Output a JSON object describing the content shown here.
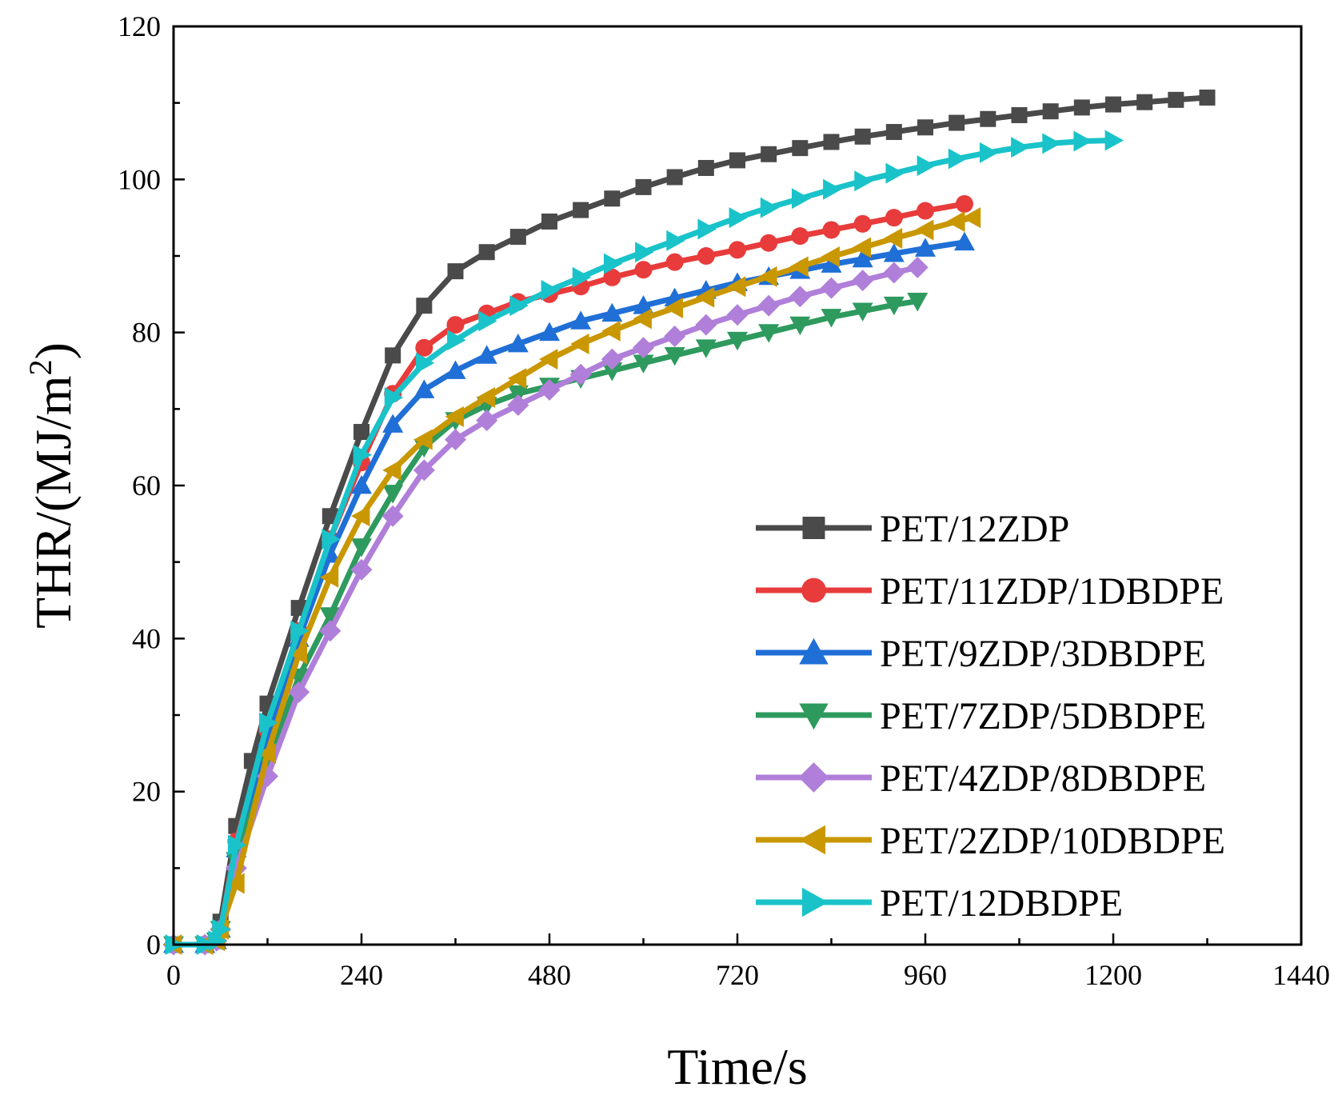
{
  "chart_data": {
    "type": "line",
    "title": "",
    "xlabel": "Time/s",
    "ylabel_main": "THR/(MJ/m",
    "ylabel_sup": "2",
    "ylabel_close": ")",
    "xlim": [
      0,
      1440
    ],
    "ylim": [
      0,
      120
    ],
    "xticks": [
      0,
      240,
      480,
      720,
      960,
      1200,
      1440
    ],
    "yticks": [
      0,
      20,
      40,
      60,
      80,
      100,
      120
    ],
    "legend_position": "bottom-right",
    "grid": false,
    "series": [
      {
        "name": "PET/12ZDP",
        "color": "#4a4a4a",
        "marker": "square",
        "x": [
          0,
          40,
          55,
          60,
          80,
          100,
          120,
          160,
          200,
          240,
          280,
          320,
          360,
          400,
          440,
          480,
          520,
          560,
          600,
          640,
          680,
          720,
          760,
          800,
          840,
          880,
          920,
          960,
          1000,
          1040,
          1080,
          1120,
          1160,
          1200,
          1240,
          1280,
          1320
        ],
        "y": [
          0,
          0,
          0.5,
          3,
          15.5,
          24,
          31.5,
          44,
          56,
          67,
          77,
          83.5,
          88,
          90.5,
          92.5,
          94.5,
          96,
          97.5,
          99,
          100.3,
          101.5,
          102.5,
          103.3,
          104.1,
          104.9,
          105.6,
          106.2,
          106.8,
          107.4,
          107.9,
          108.4,
          108.9,
          109.4,
          109.8,
          110.1,
          110.4,
          110.7
        ]
      },
      {
        "name": "PET/11ZDP/1DBDPE",
        "color": "#e83b3b",
        "marker": "circle",
        "x": [
          0,
          40,
          55,
          60,
          80,
          120,
          160,
          200,
          240,
          280,
          320,
          360,
          400,
          440,
          480,
          520,
          560,
          600,
          640,
          680,
          720,
          760,
          800,
          840,
          880,
          920,
          960,
          1010
        ],
        "y": [
          0,
          0,
          0.5,
          2,
          13.5,
          28,
          41,
          53,
          63,
          72,
          78,
          81,
          82.5,
          84,
          85,
          86,
          87.2,
          88.2,
          89.2,
          90,
          90.8,
          91.7,
          92.6,
          93.4,
          94.2,
          95,
          95.9,
          96.8
        ]
      },
      {
        "name": "PET/9ZDP/3DBDPE",
        "color": "#1f6fd6",
        "marker": "triangle-up",
        "x": [
          0,
          40,
          55,
          60,
          80,
          120,
          160,
          200,
          240,
          280,
          320,
          360,
          400,
          440,
          480,
          520,
          560,
          600,
          640,
          680,
          720,
          760,
          800,
          840,
          880,
          920,
          960,
          1010
        ],
        "y": [
          0,
          0,
          0.5,
          2,
          12.5,
          27,
          40,
          51,
          60,
          68,
          72.5,
          75,
          77,
          78.5,
          80,
          81.5,
          82.5,
          83.5,
          84.5,
          85.5,
          86.5,
          87.3,
          88.1,
          88.9,
          89.6,
          90.3,
          91,
          91.8
        ]
      },
      {
        "name": "PET/7ZDP/5DBDPE",
        "color": "#2e9a5e",
        "marker": "triangle-down",
        "x": [
          0,
          40,
          55,
          60,
          80,
          120,
          160,
          200,
          240,
          280,
          320,
          360,
          400,
          440,
          480,
          520,
          560,
          600,
          640,
          680,
          720,
          760,
          800,
          840,
          880,
          920,
          950
        ],
        "y": [
          0,
          0,
          0.5,
          2,
          11,
          24,
          35,
          43,
          52,
          59,
          65,
          68.5,
          70.5,
          72,
          73,
          74,
          75,
          76,
          77,
          78,
          79,
          80,
          81,
          82,
          82.8,
          83.6,
          84.1
        ]
      },
      {
        "name": "PET/4ZDP/8DBDPE",
        "color": "#b07fd9",
        "marker": "diamond",
        "x": [
          0,
          40,
          55,
          60,
          80,
          120,
          160,
          200,
          240,
          280,
          320,
          360,
          400,
          440,
          480,
          520,
          560,
          600,
          640,
          680,
          720,
          760,
          800,
          840,
          880,
          920,
          950
        ],
        "y": [
          0,
          0,
          0.5,
          2,
          10,
          22,
          33,
          41,
          49,
          56,
          62,
          66,
          68.5,
          70.5,
          72.5,
          74.5,
          76.5,
          78,
          79.5,
          81,
          82.3,
          83.5,
          84.7,
          85.8,
          86.8,
          87.8,
          88.5
        ]
      },
      {
        "name": "PET/2ZDP/10DBDPE",
        "color": "#c99700",
        "marker": "triangle-left",
        "x": [
          0,
          40,
          55,
          60,
          80,
          120,
          160,
          200,
          240,
          280,
          320,
          360,
          400,
          440,
          480,
          520,
          560,
          600,
          640,
          680,
          720,
          760,
          800,
          840,
          880,
          920,
          960,
          1000,
          1020
        ],
        "y": [
          0,
          0,
          0.5,
          2,
          8,
          25,
          38,
          48,
          56,
          62,
          66,
          69,
          71.5,
          74,
          76.5,
          78.5,
          80.2,
          81.8,
          83.2,
          84.6,
          86,
          87.3,
          88.6,
          89.9,
          91.1,
          92.3,
          93.4,
          94.5,
          95
        ]
      },
      {
        "name": "PET/12DBDPE",
        "color": "#19c3c9",
        "marker": "triangle-right",
        "x": [
          0,
          40,
          55,
          60,
          80,
          120,
          160,
          200,
          240,
          280,
          320,
          360,
          400,
          440,
          480,
          520,
          560,
          600,
          640,
          680,
          720,
          760,
          800,
          840,
          880,
          920,
          960,
          1000,
          1040,
          1080,
          1120,
          1160,
          1200
        ],
        "y": [
          0,
          0,
          0.5,
          2,
          13,
          29,
          41,
          53,
          64,
          71.5,
          76,
          79,
          81.5,
          83.5,
          85.5,
          87.2,
          89,
          90.5,
          92,
          93.5,
          95,
          96.3,
          97.5,
          98.7,
          99.8,
          100.8,
          101.8,
          102.7,
          103.5,
          104.2,
          104.7,
          105,
          105.1
        ]
      }
    ]
  }
}
